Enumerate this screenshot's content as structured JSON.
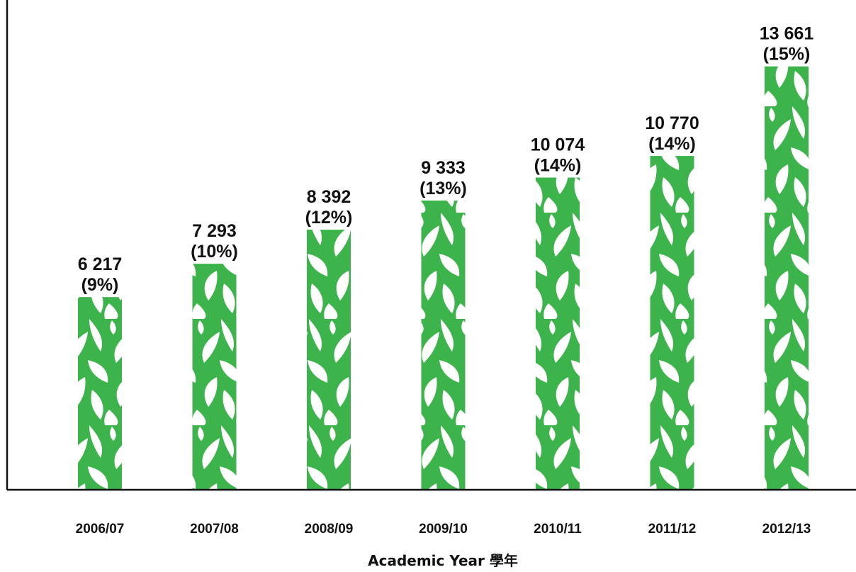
{
  "chart_data": {
    "type": "bar",
    "categories": [
      "2006/07",
      "2007/08",
      "2008/09",
      "2009/10",
      "2010/11",
      "2011/12",
      "2012/13"
    ],
    "values": [
      6217,
      7293,
      8392,
      9333,
      10074,
      10770,
      13661
    ],
    "labels": [
      [
        "6 217",
        "(9%)"
      ],
      [
        "7 293",
        "(10%)"
      ],
      [
        "8 392",
        "(12%)"
      ],
      [
        "9 333",
        "(13%)"
      ],
      [
        "10 074",
        "(14%)"
      ],
      [
        "10 770",
        "(14%)"
      ],
      [
        "13 661",
        "(15%)"
      ]
    ],
    "xlabel": "Academic Year 學年",
    "ylabel": "",
    "ylim": [
      0,
      14500
    ],
    "grid": false,
    "colors": {
      "bar": "#3cb44b",
      "pattern": "#ffffff",
      "axis": "#111111"
    }
  }
}
